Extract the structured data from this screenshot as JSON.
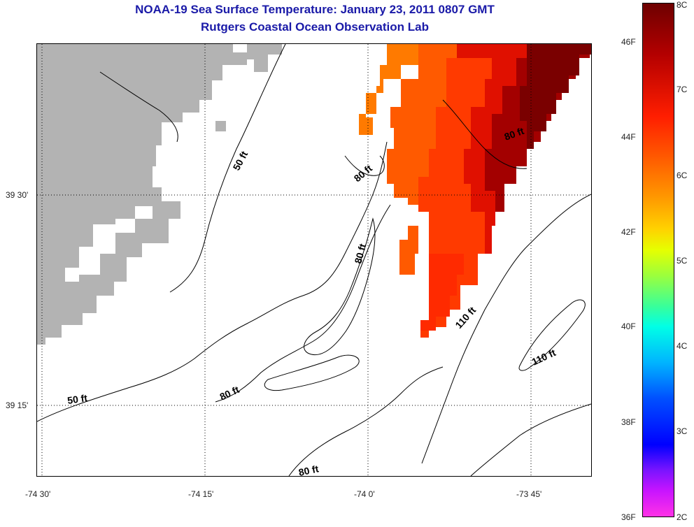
{
  "title": {
    "line1": "NOAA-19 Sea Surface Temperature:  January 23, 2011 0807 GMT",
    "line2": "Rutgers Coastal Ocean Observation Lab"
  },
  "axes": {
    "lon_ticks": [
      "-74 30'",
      "-74 15'",
      "-74 0'",
      "-73 45'"
    ],
    "lat_ticks": [
      "39 30'",
      "39 15'"
    ],
    "grid": "dotted"
  },
  "contours": {
    "labels": [
      "50 ft",
      "80 ft",
      "80 ft",
      "80 ft",
      "80 ft",
      "80 ft",
      "110 ft",
      "110 ft",
      "50 ft"
    ]
  },
  "colorbar": {
    "celsius": [
      "8C",
      "7C",
      "6C",
      "5C",
      "4C",
      "3C",
      "2C"
    ],
    "fahrenheit": [
      "46F",
      "44F",
      "42F",
      "40F",
      "38F",
      "36F"
    ]
  },
  "colors": {
    "land": "#b3b3b3",
    "title": "#1a1aa8",
    "sst_warm": "#8b0000",
    "sst_mid": "#ff2a00",
    "sst_cool": "#ff6a00"
  }
}
